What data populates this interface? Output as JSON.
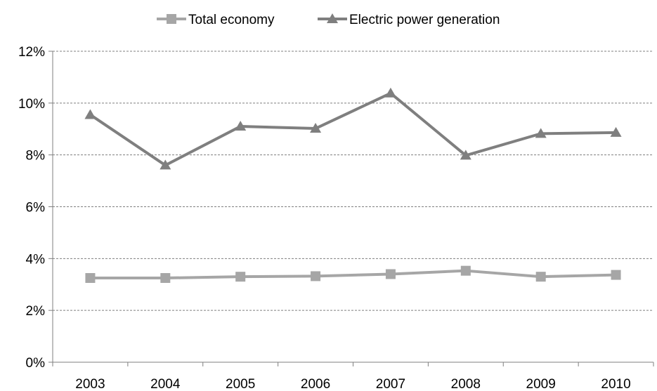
{
  "chart_data": {
    "type": "line",
    "categories": [
      "2003",
      "2004",
      "2005",
      "2006",
      "2007",
      "2008",
      "2009",
      "2010"
    ],
    "series": [
      {
        "name": "Total economy",
        "values": [
          3.25,
          3.25,
          3.3,
          3.32,
          3.4,
          3.53,
          3.3,
          3.37
        ],
        "color": "#a6a6a6",
        "marker": "square"
      },
      {
        "name": "Electric power generation",
        "values": [
          9.55,
          7.6,
          9.1,
          9.02,
          10.38,
          7.98,
          8.82,
          8.86
        ],
        "color": "#7f7f7f",
        "marker": "triangle"
      }
    ],
    "ylim": [
      0,
      12
    ],
    "yticks": [
      0,
      2,
      4,
      6,
      8,
      10,
      12
    ],
    "ytick_labels": [
      "0%",
      "2%",
      "4%",
      "6%",
      "8%",
      "10%",
      "12%"
    ],
    "grid": true,
    "legend_position": "top-center",
    "title": "",
    "xlabel": "",
    "ylabel": ""
  }
}
